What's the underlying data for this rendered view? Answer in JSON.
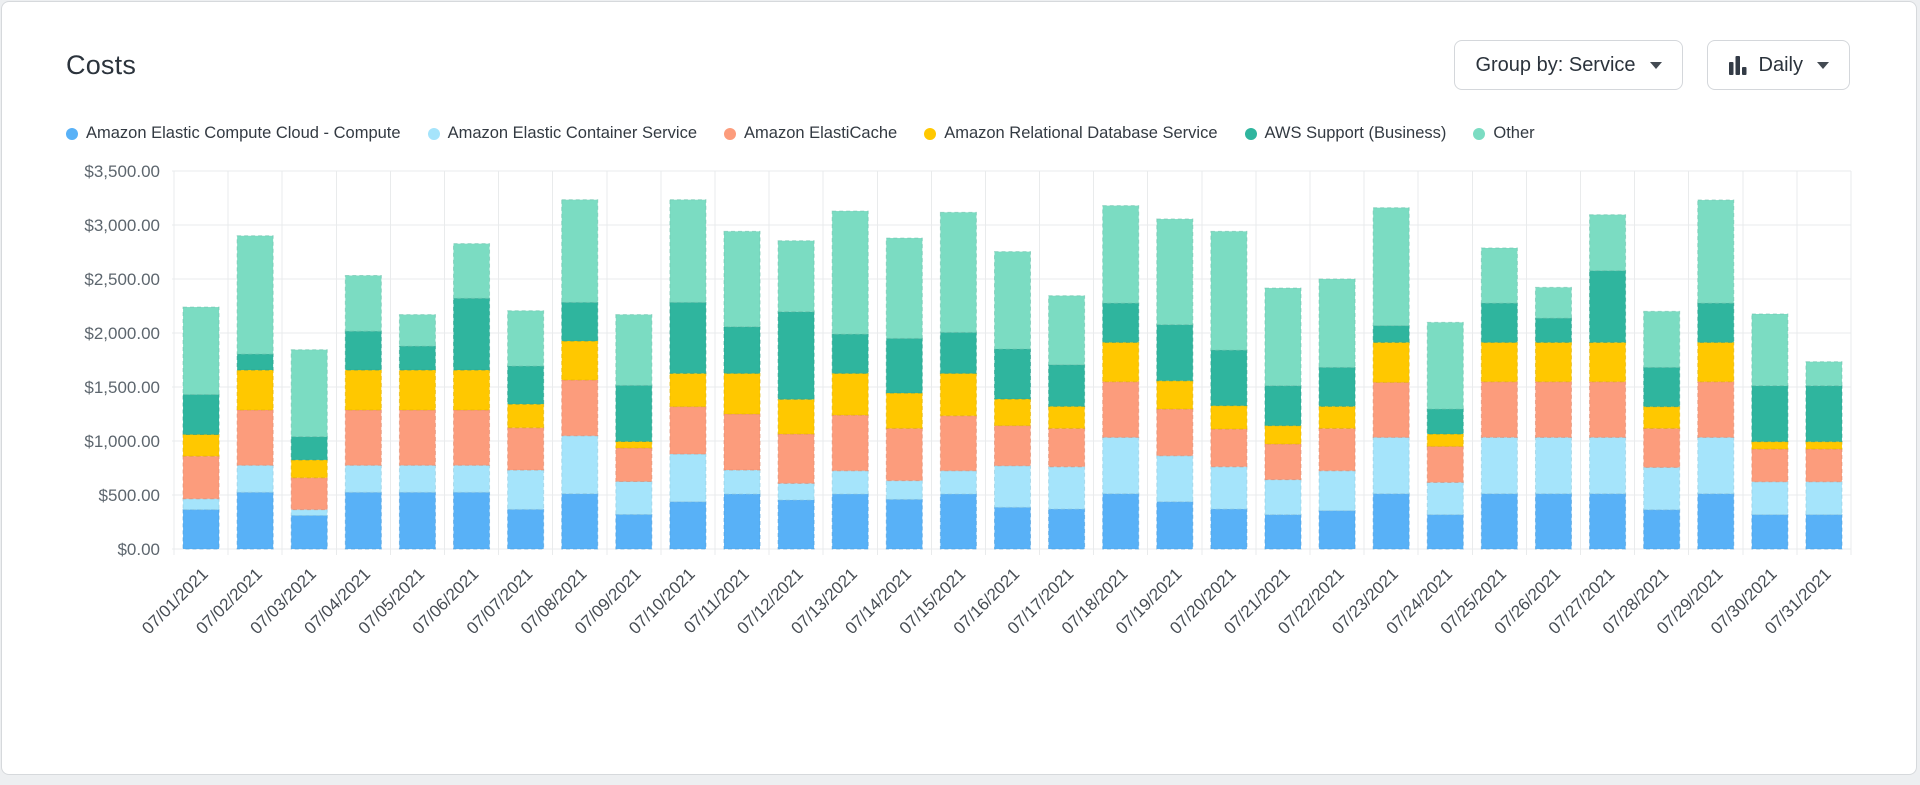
{
  "page": {
    "title": "Costs"
  },
  "controls": {
    "group_by": {
      "label": "Group by: Service",
      "icon": "chevron-down-icon"
    },
    "granularity": {
      "label": "Daily",
      "icon": "bar-chart-icon",
      "caret_icon": "chevron-down-icon"
    }
  },
  "colors": {
    "card_background": "#ffffff",
    "page_background": "#edeff1",
    "card_border": "#d6d9dc",
    "gridline": "#e9ebec",
    "title_text": "#2b333c",
    "axis_text": "#5d666e"
  },
  "chart_data": {
    "type": "bar",
    "stacked": true,
    "title": "Costs",
    "xlabel": "",
    "ylabel": "",
    "ylim": [
      0,
      3500
    ],
    "grid": true,
    "legend_position": "top",
    "y_ticks": [
      "$0.00",
      "$500.00",
      "$1,000.00",
      "$1,500.00",
      "$2,000.00",
      "$2,500.00",
      "$3,000.00",
      "$3,500.00"
    ],
    "x": [
      "07/01/2021",
      "07/02/2021",
      "07/03/2021",
      "07/04/2021",
      "07/05/2021",
      "07/06/2021",
      "07/07/2021",
      "07/08/2021",
      "07/09/2021",
      "07/10/2021",
      "07/11/2021",
      "07/12/2021",
      "07/13/2021",
      "07/14/2021",
      "07/15/2021",
      "07/16/2021",
      "07/17/2021",
      "07/18/2021",
      "07/19/2021",
      "07/20/2021",
      "07/21/2021",
      "07/22/2021",
      "07/23/2021",
      "07/24/2021",
      "07/25/2021",
      "07/26/2021",
      "07/27/2021",
      "07/28/2021",
      "07/29/2021",
      "07/30/2021",
      "07/31/2021"
    ],
    "series": [
      {
        "name": "Amazon Elastic Compute Cloud - Compute",
        "color": "#58b1f7",
        "values": [
          365,
          525,
          310,
          525,
          525,
          525,
          367,
          512,
          320,
          438,
          509,
          454,
          509,
          460,
          509,
          386,
          370,
          512,
          438,
          370,
          318,
          355,
          512,
          318,
          512,
          512,
          512,
          364,
          512,
          318,
          318
        ]
      },
      {
        "name": "Amazon Elastic Container Service",
        "color": "#a5e4fb",
        "values": [
          100,
          250,
          55,
          250,
          250,
          250,
          364,
          537,
          305,
          442,
          222,
          154,
          216,
          173,
          216,
          385,
          392,
          522,
          426,
          392,
          324,
          370,
          522,
          299,
          522,
          522,
          522,
          392,
          522,
          305,
          305
        ]
      },
      {
        "name": "Amazon ElastiCache",
        "color": "#fc9c7c",
        "values": [
          395,
          512,
          295,
          512,
          512,
          512,
          392,
          516,
          310,
          438,
          519,
          457,
          515,
          484,
          509,
          371,
          355,
          515,
          432,
          349,
          330,
          392,
          509,
          333,
          515,
          515,
          515,
          361,
          515,
          303,
          303
        ]
      },
      {
        "name": "Amazon Relational Database Service",
        "color": "#ffc800",
        "values": [
          200,
          370,
          165,
          370,
          370,
          370,
          219,
          361,
          60,
          308,
          376,
          321,
          386,
          327,
          392,
          247,
          204,
          364,
          262,
          216,
          170,
          204,
          370,
          115,
          364,
          364,
          364,
          201,
          364,
          68,
          68
        ]
      },
      {
        "name": "AWS Support (Business)",
        "color": "#2fb59e",
        "values": [
          370,
          148,
          215,
          360,
          222,
          665,
          352,
          358,
          520,
          657,
          432,
          811,
          364,
          506,
          380,
          463,
          385,
          364,
          519,
          515,
          370,
          361,
          155,
          231,
          364,
          225,
          664,
          364,
          364,
          518,
          518
        ]
      },
      {
        "name": "Other",
        "color": "#7bdcc2",
        "values": [
          810,
          1095,
          805,
          515,
          291,
          505,
          512,
          950,
          655,
          951,
          883,
          657,
          1139,
          929,
          1111,
          901,
          639,
          902,
          978,
          1099,
          904,
          818,
          1092,
          802,
          510,
          284,
          518,
          518,
          954,
          664,
          222
        ]
      }
    ]
  }
}
